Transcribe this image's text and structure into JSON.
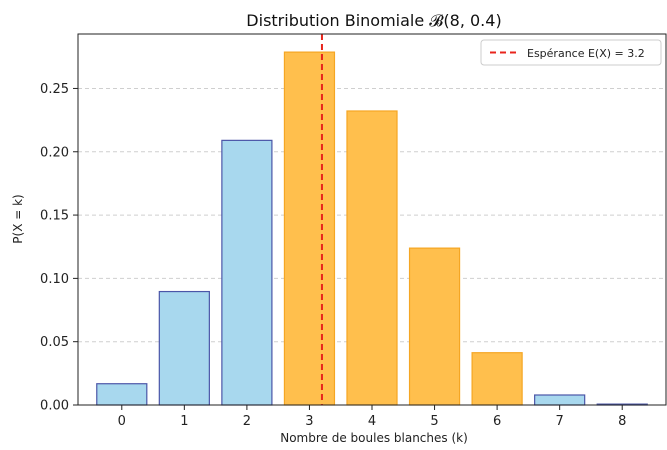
{
  "chart_data": {
    "type": "bar",
    "title": "Distribution Binomiale 𝓑(8, 0.4)",
    "xlabel": "Nombre de boules blanches (k)",
    "ylabel": "P(X = k)",
    "categories": [
      "0",
      "1",
      "2",
      "3",
      "4",
      "5",
      "6",
      "7",
      "8"
    ],
    "values": [
      0.0168,
      0.0896,
      0.209,
      0.2787,
      0.2322,
      0.1239,
      0.0413,
      0.0079,
      0.0007
    ],
    "ylim": [
      0,
      0.293
    ],
    "yticks": [
      "0.00",
      "0.05",
      "0.10",
      "0.15",
      "0.20",
      "0.25"
    ],
    "grid": "y-dashed",
    "highlighted_categories": [
      "3",
      "4",
      "5",
      "6"
    ],
    "colors": {
      "bar_default_fill": "#a8d8ee",
      "bar_default_edge": "#4b56a8",
      "bar_highlight_fill": "#ffbf4d",
      "bar_highlight_edge": "#f5a623",
      "mean_line": "#e8241c"
    },
    "reference_line": {
      "x": 3.2,
      "label": "Espérance E(X) = 3.2",
      "style": "dashed"
    },
    "legend_position": "top-right"
  }
}
